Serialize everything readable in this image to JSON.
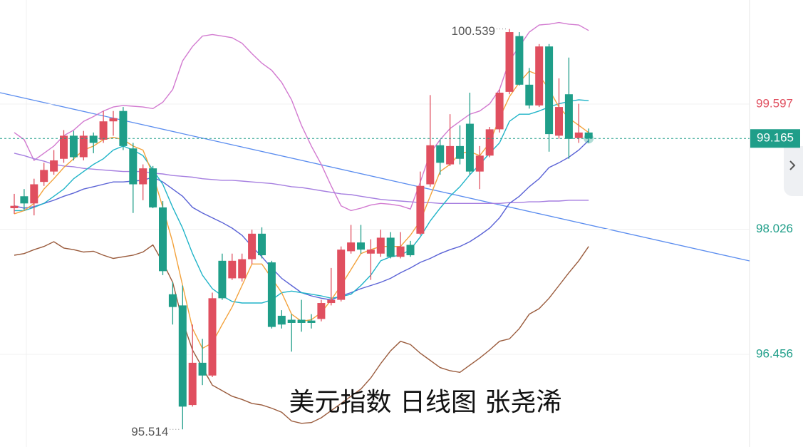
{
  "chart_data": {
    "type": "candlestick",
    "title": "美元指数 日线图 张尧浠",
    "open": [
      98.29,
      98.44,
      98.35,
      98.62,
      98.75,
      98.91,
      99.2,
      98.93,
      99.2,
      99.15,
      99.38,
      99.51,
      99.04,
      98.59,
      98.79,
      98.3,
      97.21,
      97.07,
      95.82,
      96.35,
      96.19,
      97.63,
      97.41,
      97.41,
      97.65,
      97.97,
      97.61,
      96.94,
      96.89,
      96.89,
      96.88,
      96.9,
      97.1,
      97.14,
      97.75,
      97.86,
      97.72,
      97.72,
      97.92,
      97.68,
      97.83,
      97.97,
      98.59,
      99.08,
      98.84,
      99.07,
      99.35,
      98.75,
      98.95,
      99.28,
      99.75,
      100.45,
      99.84,
      99.58,
      100.32,
      99.2,
      99.72,
      99.17,
      99.24
    ],
    "high": [
      98.47,
      98.53,
      98.66,
      98.86,
      99.02,
      99.27,
      99.26,
      99.26,
      99.24,
      99.51,
      99.51,
      99.56,
      99.11,
      98.84,
      98.82,
      98.38,
      97.36,
      97.32,
      96.83,
      96.65,
      97.23,
      97.72,
      97.72,
      97.72,
      98.02,
      98.05,
      97.63,
      97.01,
      96.96,
      97.14,
      96.96,
      97.14,
      97.54,
      97.81,
      98.08,
      98.08,
      97.9,
      98.02,
      97.99,
      97.99,
      97.88,
      98.75,
      99.71,
      99.15,
      99.47,
      99.33,
      99.74,
      99.07,
      99.31,
      99.78,
      100.539,
      100.5,
      100.05,
      100.35,
      100.35,
      99.92,
      100.18,
      99.6,
      99.29
    ],
    "low": [
      98.22,
      98.26,
      98.2,
      98.57,
      98.71,
      98.86,
      98.89,
      98.89,
      98.98,
      99.11,
      99.2,
      99.02,
      98.23,
      98.39,
      98.29,
      97.45,
      96.83,
      95.514,
      95.8,
      96.07,
      96.17,
      97.14,
      97.39,
      97.37,
      97.59,
      97.66,
      96.78,
      96.78,
      96.49,
      96.74,
      96.78,
      96.87,
      97.07,
      97.12,
      97.72,
      97.72,
      97.39,
      97.68,
      97.66,
      97.66,
      97.68,
      97.95,
      98.56,
      98.71,
      98.82,
      98.84,
      98.71,
      98.53,
      98.93,
      99.24,
      99.72,
      99.83,
      99.54,
      99.56,
      99.0,
      99.16,
      98.91,
      99.11,
      99.11
    ],
    "close": [
      98.32,
      98.35,
      98.59,
      98.77,
      98.89,
      99.2,
      98.93,
      99.2,
      99.11,
      99.38,
      99.42,
      99.07,
      98.59,
      98.79,
      98.3,
      97.5,
      97.05,
      95.8,
      96.35,
      96.19,
      97.16,
      97.16,
      97.63,
      97.65,
      97.97,
      97.7,
      96.8,
      96.83,
      96.85,
      96.85,
      96.85,
      97.1,
      97.14,
      97.77,
      97.86,
      97.77,
      97.77,
      97.92,
      97.68,
      97.81,
      97.7,
      98.57,
      99.08,
      98.86,
      99.07,
      98.91,
      98.75,
      98.95,
      99.28,
      99.74,
      100.5,
      99.84,
      99.58,
      100.32,
      99.22,
      99.56,
      99.16,
      99.24,
      99.165
    ],
    "up_color": "#e04f5f",
    "down_color": "#1f9e89",
    "lines": [
      {
        "color": "#d27ad0",
        "values": [
          99.24,
          99.15,
          98.89,
          98.98,
          99.07,
          99.2,
          99.27,
          99.38,
          99.44,
          99.51,
          99.56,
          99.58,
          99.57,
          99.56,
          99.54,
          99.62,
          99.78,
          100.14,
          100.32,
          100.45,
          100.47,
          100.45,
          100.43,
          100.36,
          100.23,
          100.11,
          100.02,
          99.87,
          99.65,
          99.33,
          99.07,
          98.84,
          98.57,
          98.32,
          98.26,
          98.29,
          98.33,
          98.35,
          98.34,
          98.32,
          98.28,
          98.62,
          98.98,
          99.15,
          99.29,
          99.38,
          99.47,
          99.51,
          99.6,
          99.78,
          100.14,
          100.32,
          100.5,
          100.59,
          100.6,
          100.62,
          100.6,
          100.59,
          100.52
        ]
      },
      {
        "color": "#9a5b3c",
        "values": [
          97.7,
          97.72,
          97.77,
          97.81,
          97.87,
          97.79,
          97.77,
          97.74,
          97.75,
          97.7,
          97.66,
          97.68,
          97.7,
          97.74,
          97.83,
          97.61,
          97.36,
          96.87,
          96.51,
          96.29,
          96.07,
          96.0,
          95.93,
          95.89,
          95.84,
          95.82,
          95.78,
          95.73,
          95.62,
          95.59,
          95.6,
          95.66,
          95.75,
          95.84,
          95.93,
          96.02,
          96.16,
          96.34,
          96.5,
          96.62,
          96.58,
          96.47,
          96.38,
          96.29,
          96.25,
          96.23,
          96.32,
          96.41,
          96.51,
          96.62,
          96.65,
          96.78,
          96.96,
          97.03,
          97.16,
          97.32,
          97.48,
          97.63,
          97.81
        ]
      },
      {
        "color": "#a67fe0",
        "values": [
          98.98,
          98.95,
          98.91,
          98.88,
          98.84,
          98.82,
          98.81,
          98.79,
          98.78,
          98.77,
          98.76,
          98.75,
          98.75,
          98.75,
          98.73,
          98.72,
          98.7,
          98.69,
          98.68,
          98.66,
          98.65,
          98.64,
          98.64,
          98.63,
          98.62,
          98.61,
          98.6,
          98.58,
          98.56,
          98.55,
          98.53,
          98.51,
          98.49,
          98.47,
          98.46,
          98.44,
          98.42,
          98.4,
          98.39,
          98.38,
          98.37,
          98.36,
          98.36,
          98.35,
          98.35,
          98.35,
          98.35,
          98.35,
          98.35,
          98.35,
          98.36,
          98.36,
          98.37,
          98.37,
          98.38,
          98.38,
          98.39,
          98.39,
          98.39
        ]
      },
      {
        "color": "#5b63d6",
        "values": [
          98.32,
          98.29,
          98.31,
          98.35,
          98.39,
          98.44,
          98.48,
          98.53,
          98.56,
          98.59,
          98.62,
          98.62,
          98.63,
          98.64,
          98.68,
          98.62,
          98.53,
          98.44,
          98.3,
          98.23,
          98.17,
          98.11,
          98.04,
          97.95,
          97.81,
          97.68,
          97.54,
          97.41,
          97.32,
          97.23,
          97.19,
          97.16,
          97.14,
          97.19,
          97.23,
          97.28,
          97.32,
          97.36,
          97.41,
          97.48,
          97.54,
          97.61,
          97.66,
          97.72,
          97.77,
          97.81,
          97.87,
          97.95,
          98.04,
          98.17,
          98.35,
          98.44,
          98.56,
          98.66,
          98.8,
          98.86,
          98.93,
          99.02,
          99.14
        ]
      },
      {
        "color": "#20b4c8",
        "values": [
          98.26,
          98.26,
          98.3,
          98.35,
          98.44,
          98.53,
          98.66,
          98.75,
          98.84,
          98.91,
          99.02,
          99.07,
          99.02,
          98.95,
          98.77,
          98.59,
          98.3,
          98.04,
          97.72,
          97.45,
          97.28,
          97.19,
          97.12,
          97.1,
          97.1,
          97.1,
          97.14,
          97.23,
          97.25,
          97.23,
          97.21,
          97.19,
          97.16,
          97.18,
          97.21,
          97.32,
          97.45,
          97.63,
          97.68,
          97.7,
          97.77,
          97.93,
          98.13,
          98.29,
          98.44,
          98.56,
          98.71,
          98.84,
          98.98,
          99.11,
          99.38,
          99.47,
          99.47,
          99.51,
          99.56,
          99.6,
          99.63,
          99.65,
          99.64
        ]
      },
      {
        "color": "#f3a23c",
        "values": [
          98.22,
          98.26,
          98.35,
          98.53,
          98.66,
          98.8,
          98.91,
          99.02,
          99.07,
          99.15,
          99.18,
          99.15,
          99.07,
          99.02,
          98.71,
          98.3,
          97.86,
          97.32,
          96.78,
          96.53,
          96.6,
          96.83,
          97.05,
          97.32,
          97.59,
          97.59,
          97.41,
          97.23,
          96.96,
          96.87,
          96.89,
          96.98,
          97.14,
          97.32,
          97.52,
          97.72,
          97.77,
          97.81,
          97.81,
          97.81,
          97.95,
          98.13,
          98.44,
          98.75,
          98.84,
          98.98,
          99.0,
          98.95,
          99.11,
          99.42,
          99.69,
          99.87,
          100.01,
          99.96,
          99.78,
          99.56,
          99.42,
          99.33,
          99.24
        ]
      }
    ],
    "ylim": [
      95.293,
      100.903
    ],
    "yticks": [
      96.456,
      98.026,
      99.597
    ],
    "grid": true
  }
}
